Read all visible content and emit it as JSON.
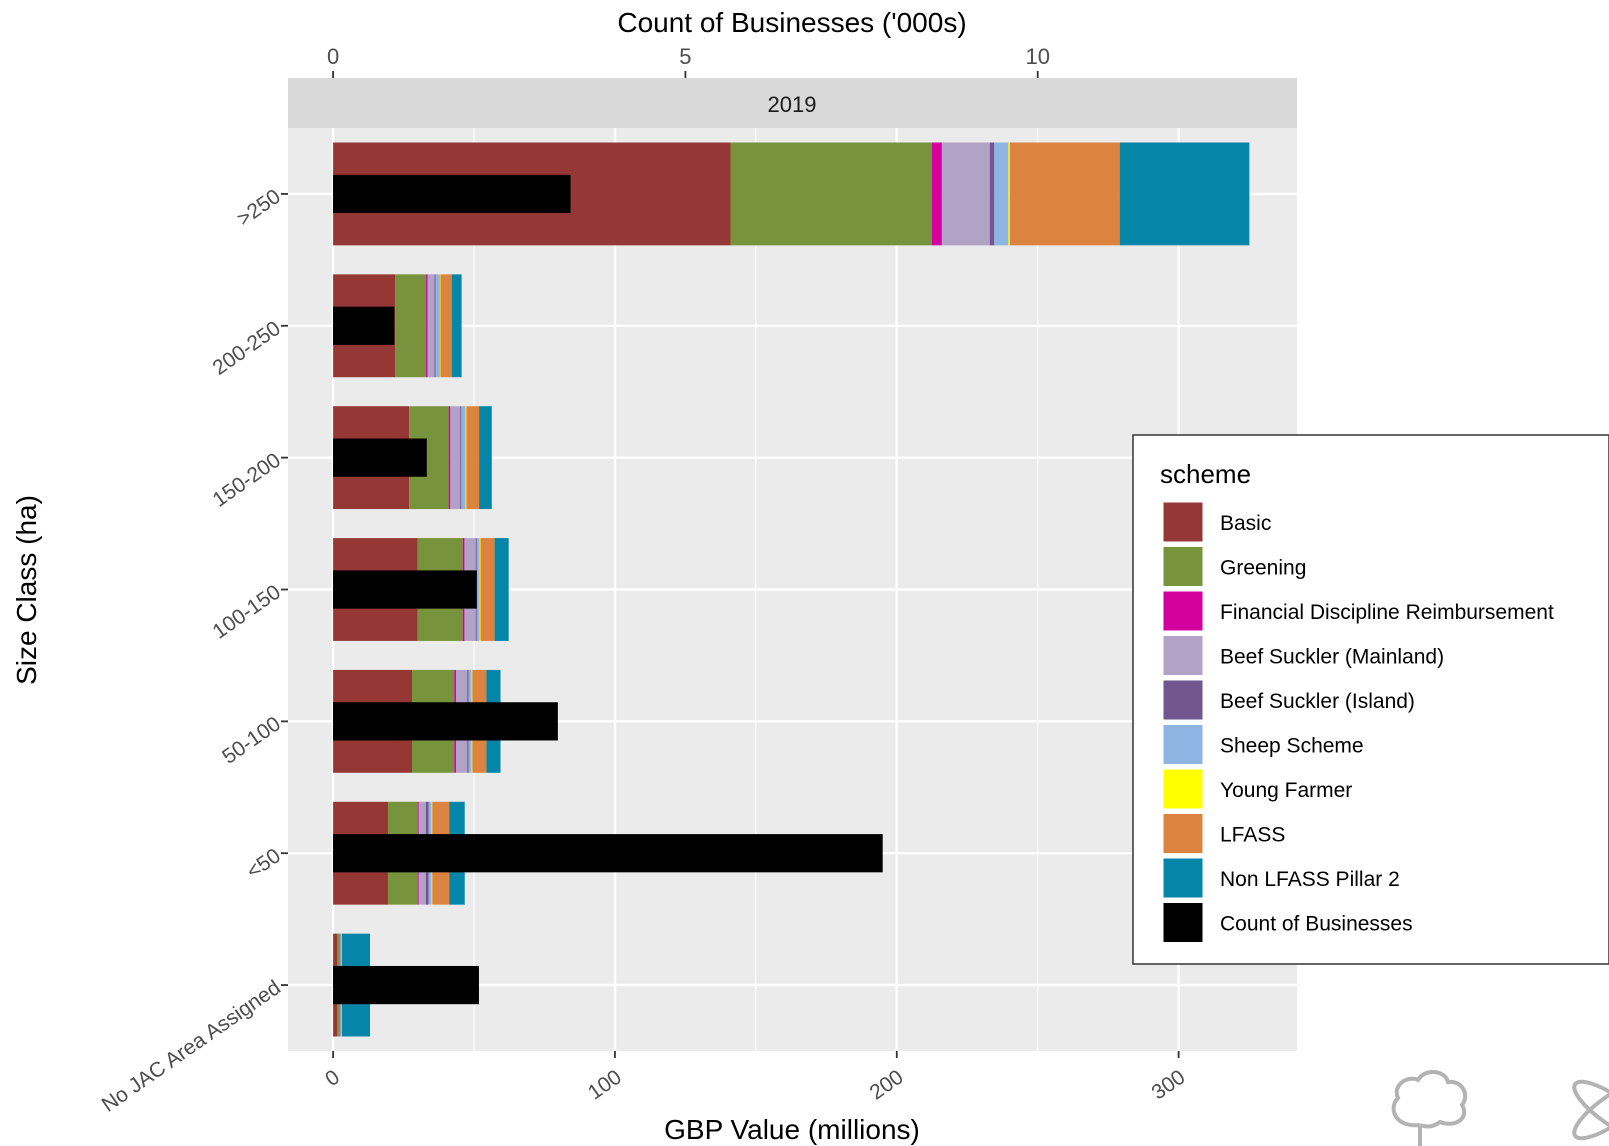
{
  "chart_data": {
    "type": "bar",
    "orientation": "horizontal",
    "stacked": true,
    "facet": "2019",
    "categories": [
      ">250",
      "200-250",
      "150-200",
      "100-150",
      "50-100",
      "<50",
      "No JAC Area Assigned"
    ],
    "xlabel": "GBP Value (millions)",
    "x_ticks": [
      0,
      100,
      200,
      300
    ],
    "xlim": [
      -16,
      342
    ],
    "secondary_xlabel": "Count of Businesses ('000s)",
    "secondary_x_ticks": [
      0,
      5,
      10
    ],
    "ylabel": "Size Class (ha)",
    "legend_title": "scheme",
    "legend_position": "right",
    "grid": true,
    "series": [
      {
        "name": "Basic",
        "color": "#953735",
        "values": [
          141,
          22,
          27,
          30,
          28,
          19.5,
          1.5
        ]
      },
      {
        "name": "Greening",
        "color": "#77933C",
        "values": [
          71.5,
          11,
          14,
          16,
          15,
          10.5,
          0.8
        ]
      },
      {
        "name": "Financial Discipline Reimbursement",
        "color": "#D3009E",
        "values": [
          3.5,
          0.5,
          0.6,
          0.6,
          0.6,
          0.4,
          0.1
        ]
      },
      {
        "name": "Beef Suckler (Mainland)",
        "color": "#B3A2C7",
        "values": [
          17,
          2.5,
          3.5,
          4,
          4,
          2.5,
          0.3
        ]
      },
      {
        "name": "Beef Suckler (Island)",
        "color": "#72568E",
        "values": [
          1.6,
          0.4,
          0.4,
          0.4,
          0.5,
          1,
          0.1
        ]
      },
      {
        "name": "Sheep Scheme",
        "color": "#8EB4E3",
        "values": [
          5,
          1.5,
          1.5,
          1,
          1,
          1,
          0.1
        ]
      },
      {
        "name": "Young Farmer",
        "color": "#FFFF00",
        "values": [
          0.5,
          0.2,
          0.3,
          0.3,
          0.3,
          0.3,
          0.1
        ]
      },
      {
        "name": "LFASS",
        "color": "#DD8340",
        "values": [
          39,
          4,
          4.5,
          5,
          5,
          6,
          0.1
        ]
      },
      {
        "name": "Non LFASS Pillar 2",
        "color": "#0586A8",
        "values": [
          46,
          3.5,
          4.5,
          5,
          5,
          5.5,
          10
        ]
      }
    ],
    "count_series": {
      "name": "Count of Businesses",
      "color": "#000000",
      "values_thousands": [
        3.37,
        0.87,
        1.33,
        2.04,
        3.19,
        7.8,
        2.07
      ]
    }
  }
}
